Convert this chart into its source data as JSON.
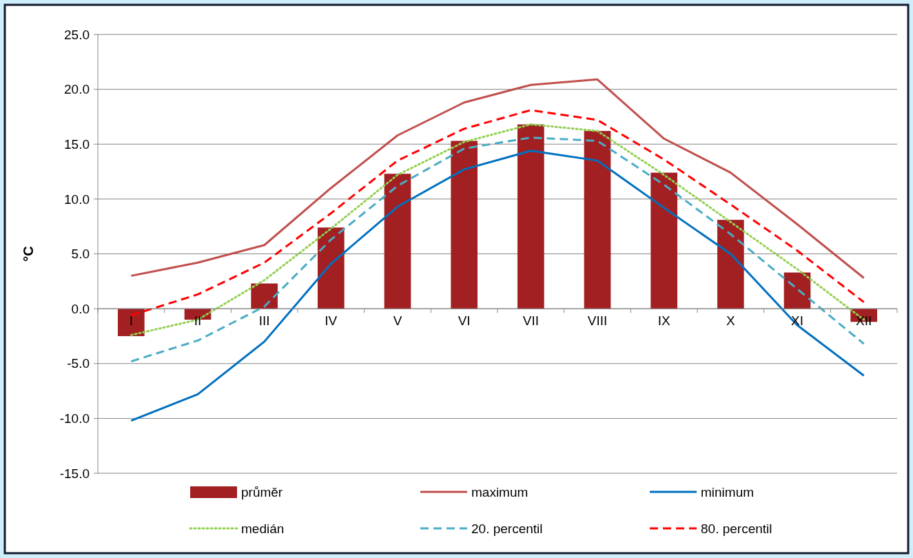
{
  "chart_data": {
    "type": "bar",
    "ylabel": "°C",
    "categories": [
      "I",
      "II",
      "III",
      "IV",
      "V",
      "VI",
      "VII",
      "VIII",
      "IX",
      "X",
      "XI",
      "XII"
    ],
    "ylim": [
      -15,
      25
    ],
    "yticks": [
      {
        "value": -15,
        "label": "-15.0"
      },
      {
        "value": -10,
        "label": "-10.0"
      },
      {
        "value": -5,
        "label": "-5.0"
      },
      {
        "value": 0,
        "label": "0.0"
      },
      {
        "value": 5,
        "label": "5.0"
      },
      {
        "value": 10,
        "label": "10.0"
      },
      {
        "value": 15,
        "label": "15.0"
      },
      {
        "value": 20,
        "label": "20.0"
      },
      {
        "value": 25,
        "label": "25.0"
      }
    ],
    "grid": "y",
    "legend": "bottom",
    "series": [
      {
        "name": "průměr",
        "color": "#a21f22",
        "values": [
          -2.5,
          -1.0,
          2.3,
          7.4,
          12.3,
          15.3,
          16.8,
          16.2,
          12.4,
          8.1,
          3.3,
          -1.2
        ]
      },
      {
        "name": "maximum",
        "type": "line",
        "color": "#c0504d",
        "line_style": "solid",
        "values": [
          3.0,
          4.2,
          5.8,
          11.0,
          15.8,
          18.8,
          20.4,
          20.9,
          15.5,
          12.4,
          7.7,
          2.8
        ]
      },
      {
        "name": "minimum",
        "type": "line",
        "color": "#0070c0",
        "line_style": "solid",
        "values": [
          -10.2,
          -7.8,
          -3.0,
          4.1,
          9.3,
          12.7,
          14.4,
          13.5,
          9.2,
          5.0,
          -1.5,
          -6.1
        ]
      },
      {
        "name": "medián",
        "type": "line",
        "color": "#92d050",
        "line_style": "dotted",
        "values": [
          -2.4,
          -1.0,
          2.6,
          7.3,
          12.2,
          15.2,
          16.8,
          16.2,
          12.2,
          7.9,
          3.6,
          -1.0
        ]
      },
      {
        "name": "20. percentil",
        "type": "line",
        "color": "#4bacc6",
        "line_style": "dashed",
        "values": [
          -4.8,
          -2.9,
          0.2,
          6.3,
          11.2,
          14.6,
          15.6,
          15.3,
          11.3,
          6.8,
          1.8,
          -3.2
        ]
      },
      {
        "name": "80. percentil",
        "type": "line",
        "color": "#ff0000",
        "line_style": "dashed",
        "values": [
          -0.6,
          1.3,
          4.2,
          8.7,
          13.5,
          16.4,
          18.1,
          17.2,
          13.6,
          9.5,
          5.3,
          0.6
        ]
      }
    ]
  }
}
